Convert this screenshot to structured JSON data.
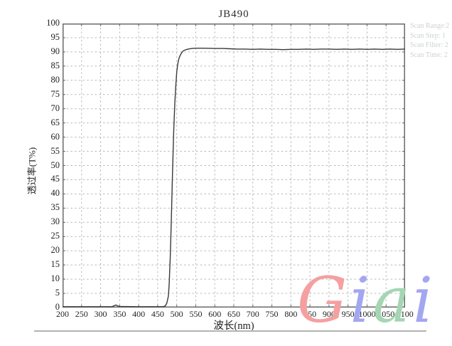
{
  "page": {
    "scan_info": {
      "lines": [
        "Scan Range:2",
        "Scan Step: 1",
        "Scan Filter: 2",
        "Scan Time: 2"
      ]
    },
    "watermark": {
      "text": "Giai",
      "letters": [
        {
          "char": "G",
          "color": "#f4a0a1"
        },
        {
          "char": "i",
          "color": "#a3a6f0"
        },
        {
          "char": "a",
          "color": "#a5d6b3"
        },
        {
          "char": "i",
          "color": "#a3a6f0"
        }
      ]
    },
    "footer_rule": true
  },
  "colors": {
    "curve": "#3a3a3a",
    "grid": "#b9b9b9",
    "frame": "#6a6a6a",
    "tick": "#6a6a6a",
    "scan_text": "#ccd3ce"
  },
  "chart_data": {
    "type": "line",
    "title": "JB490",
    "xlabel": "波长(nm)",
    "ylabel": "透过率(T%)",
    "xlim": [
      200,
      1100
    ],
    "ylim": [
      0,
      100
    ],
    "x_ticks": [
      200,
      250,
      300,
      350,
      400,
      450,
      500,
      550,
      600,
      650,
      700,
      750,
      800,
      850,
      900,
      950,
      1000,
      1050,
      1100
    ],
    "y_ticks": [
      0,
      5,
      10,
      15,
      20,
      25,
      30,
      35,
      40,
      45,
      50,
      55,
      60,
      65,
      70,
      75,
      80,
      85,
      90,
      95,
      100
    ],
    "grid": "dashed",
    "legend": "none",
    "series": [
      {
        "name": "JB490 transmittance",
        "points": [
          [
            200,
            0.3
          ],
          [
            250,
            0.3
          ],
          [
            300,
            0.3
          ],
          [
            330,
            0.3
          ],
          [
            340,
            0.9
          ],
          [
            348,
            0.4
          ],
          [
            400,
            0.3
          ],
          [
            450,
            0.3
          ],
          [
            465,
            0.3
          ],
          [
            470,
            0.6
          ],
          [
            474,
            1.5
          ],
          [
            478,
            4
          ],
          [
            480,
            8
          ],
          [
            483,
            18
          ],
          [
            486,
            32
          ],
          [
            489,
            48
          ],
          [
            492,
            62
          ],
          [
            495,
            72
          ],
          [
            498,
            79
          ],
          [
            500,
            83
          ],
          [
            503,
            86
          ],
          [
            506,
            87.8
          ],
          [
            510,
            89
          ],
          [
            515,
            90.1
          ],
          [
            520,
            90.6
          ],
          [
            530,
            91.0
          ],
          [
            540,
            91.2
          ],
          [
            550,
            91.3
          ],
          [
            570,
            91.3
          ],
          [
            600,
            91.2
          ],
          [
            620,
            91.2
          ],
          [
            640,
            91.1
          ],
          [
            660,
            91.0
          ],
          [
            680,
            91.0
          ],
          [
            700,
            90.9
          ],
          [
            720,
            91.0
          ],
          [
            740,
            90.9
          ],
          [
            760,
            90.9
          ],
          [
            780,
            90.8
          ],
          [
            800,
            90.9
          ],
          [
            820,
            90.9
          ],
          [
            840,
            91.0
          ],
          [
            860,
            90.9
          ],
          [
            880,
            91.0
          ],
          [
            900,
            91.0
          ],
          [
            920,
            90.9
          ],
          [
            940,
            91.0
          ],
          [
            960,
            90.9
          ],
          [
            980,
            91.0
          ],
          [
            1000,
            90.9
          ],
          [
            1020,
            91.0
          ],
          [
            1040,
            90.9
          ],
          [
            1060,
            91.0
          ],
          [
            1080,
            90.9
          ],
          [
            1100,
            91.0
          ]
        ]
      }
    ]
  }
}
